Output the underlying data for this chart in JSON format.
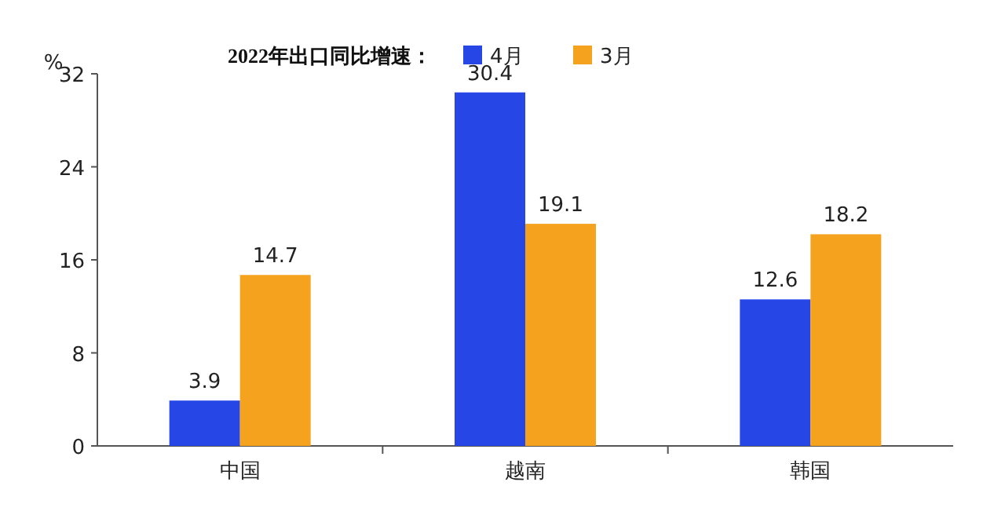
{
  "chart_data": {
    "type": "bar",
    "title": "2022年出口同比增速：",
    "ylabel": "%",
    "categories": [
      "中国",
      "越南",
      "韩国"
    ],
    "series": [
      {
        "name": "4月",
        "color": "#2646e6",
        "values": [
          3.9,
          30.4,
          12.6
        ]
      },
      {
        "name": "3月",
        "color": "#f5a21e",
        "values": [
          14.7,
          19.1,
          18.2
        ]
      }
    ],
    "ylim": [
      0,
      32
    ],
    "yticks": [
      0,
      8,
      16,
      24,
      32
    ],
    "data_labels": true,
    "legend": "top",
    "grid": false
  }
}
